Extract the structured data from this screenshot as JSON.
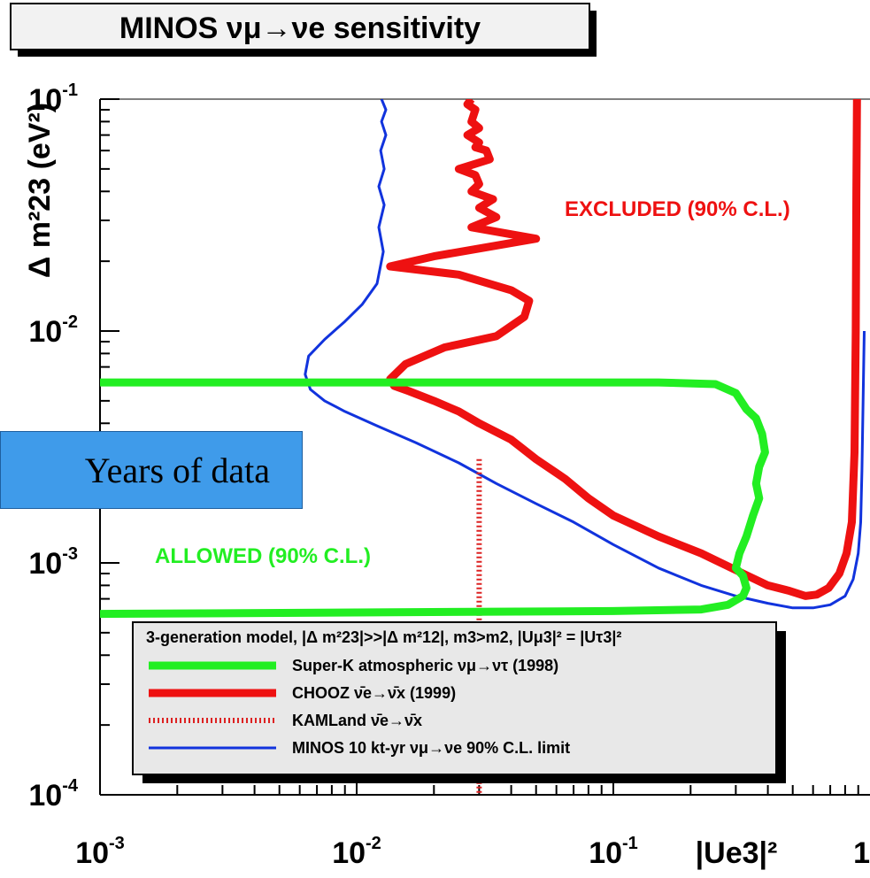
{
  "chart_data": {
    "type": "line",
    "title": "MINOS νμ→νe sensitivity",
    "xlabel": "|Ue3|²",
    "ylabel": "Δ m²23 (eV²)",
    "x_scale": "log",
    "y_scale": "log",
    "xlim": [
      0.001,
      1
    ],
    "ylim": [
      0.0001,
      0.1
    ],
    "x_ticks": [
      {
        "value": 0.001,
        "base": "10",
        "exp": "-3"
      },
      {
        "value": 0.01,
        "base": "10",
        "exp": "-2"
      },
      {
        "value": 0.1,
        "base": "10",
        "exp": "-1"
      },
      {
        "value": 1,
        "base": "1",
        "exp": ""
      }
    ],
    "y_ticks": [
      {
        "value": 0.1,
        "base": "10",
        "exp": "-1"
      },
      {
        "value": 0.01,
        "base": "10",
        "exp": "-2"
      },
      {
        "value": 0.001,
        "base": "10",
        "exp": "-3"
      },
      {
        "value": 0.0001,
        "base": "10",
        "exp": "-4"
      }
    ],
    "series": [
      {
        "name": "Super-K atmospheric νμ→ντ (1998)",
        "color": "#22ee22",
        "style": "solid-thick",
        "points": [
          [
            0.0005,
            0.006
          ],
          [
            0.03,
            0.006
          ],
          [
            0.15,
            0.006
          ],
          [
            0.25,
            0.0059
          ],
          [
            0.3,
            0.0054
          ],
          [
            0.33,
            0.0046
          ],
          [
            0.36,
            0.0042
          ],
          [
            0.38,
            0.0036
          ],
          [
            0.39,
            0.003
          ],
          [
            0.37,
            0.0026
          ],
          [
            0.36,
            0.0022
          ],
          [
            0.37,
            0.0019
          ],
          [
            0.35,
            0.0016
          ],
          [
            0.33,
            0.0013
          ],
          [
            0.31,
            0.0011
          ],
          [
            0.3,
            0.00095
          ],
          [
            0.32,
            0.00088
          ],
          [
            0.33,
            0.00078
          ],
          [
            0.32,
            0.00072
          ],
          [
            0.28,
            0.00066
          ],
          [
            0.22,
            0.00063
          ],
          [
            0.1,
            0.00062
          ],
          [
            0.0005,
            0.0006
          ]
        ]
      },
      {
        "name": "CHOOZ ν̄e→ν̄x (1999)",
        "color": "#ee1111",
        "style": "solid-thick",
        "points": [
          [
            0.028,
            0.1
          ],
          [
            0.027,
            0.095
          ],
          [
            0.029,
            0.09
          ],
          [
            0.028,
            0.08
          ],
          [
            0.03,
            0.075
          ],
          [
            0.027,
            0.07
          ],
          [
            0.03,
            0.065
          ],
          [
            0.029,
            0.062
          ],
          [
            0.032,
            0.06
          ],
          [
            0.033,
            0.055
          ],
          [
            0.025,
            0.05
          ],
          [
            0.029,
            0.047
          ],
          [
            0.03,
            0.043
          ],
          [
            0.028,
            0.04
          ],
          [
            0.034,
            0.037
          ],
          [
            0.03,
            0.034
          ],
          [
            0.035,
            0.031
          ],
          [
            0.028,
            0.028
          ],
          [
            0.05,
            0.025
          ],
          [
            0.02,
            0.021
          ],
          [
            0.0135,
            0.019
          ],
          [
            0.025,
            0.0175
          ],
          [
            0.04,
            0.015
          ],
          [
            0.047,
            0.0135
          ],
          [
            0.045,
            0.0115
          ],
          [
            0.035,
            0.0095
          ],
          [
            0.022,
            0.0085
          ],
          [
            0.0155,
            0.0072
          ],
          [
            0.0135,
            0.0062
          ],
          [
            0.014,
            0.0058
          ],
          [
            0.016,
            0.0055
          ],
          [
            0.02,
            0.005
          ],
          [
            0.025,
            0.0045
          ],
          [
            0.03,
            0.004
          ],
          [
            0.04,
            0.0034
          ],
          [
            0.05,
            0.0028
          ],
          [
            0.065,
            0.0023
          ],
          [
            0.08,
            0.0019
          ],
          [
            0.1,
            0.0016
          ],
          [
            0.15,
            0.0013
          ],
          [
            0.22,
            0.0011
          ],
          [
            0.32,
            0.0009
          ],
          [
            0.4,
            0.0008
          ],
          [
            0.48,
            0.00076
          ],
          [
            0.56,
            0.00072
          ],
          [
            0.62,
            0.00073
          ],
          [
            0.69,
            0.00078
          ],
          [
            0.76,
            0.0009
          ],
          [
            0.81,
            0.0011
          ],
          [
            0.85,
            0.0015
          ],
          [
            0.87,
            0.003
          ],
          [
            0.88,
            0.01
          ],
          [
            0.885,
            0.04
          ],
          [
            0.89,
            0.1
          ]
        ]
      },
      {
        "name": "KAMLand ν̄e→ν̄x",
        "color": "#dd2222",
        "style": "dotted",
        "points": [
          [
            0.03,
            0.0028
          ],
          [
            0.03,
            0.0001
          ]
        ]
      },
      {
        "name": "MINOS 10 kt-yr νμ→νe 90% C.L. limit",
        "color": "#1133dd",
        "style": "solid-thin",
        "points": [
          [
            0.0125,
            0.1
          ],
          [
            0.013,
            0.09
          ],
          [
            0.0125,
            0.08
          ],
          [
            0.013,
            0.07
          ],
          [
            0.0124,
            0.06
          ],
          [
            0.0128,
            0.05
          ],
          [
            0.0122,
            0.042
          ],
          [
            0.0128,
            0.035
          ],
          [
            0.0122,
            0.028
          ],
          [
            0.0127,
            0.022
          ],
          [
            0.012,
            0.016
          ],
          [
            0.0105,
            0.013
          ],
          [
            0.009,
            0.011
          ],
          [
            0.0075,
            0.0092
          ],
          [
            0.0065,
            0.0078
          ],
          [
            0.0063,
            0.0065
          ],
          [
            0.0066,
            0.0056
          ],
          [
            0.0075,
            0.005
          ],
          [
            0.009,
            0.0045
          ],
          [
            0.012,
            0.0039
          ],
          [
            0.017,
            0.0033
          ],
          [
            0.025,
            0.0027
          ],
          [
            0.035,
            0.0022
          ],
          [
            0.05,
            0.0018
          ],
          [
            0.07,
            0.0015
          ],
          [
            0.1,
            0.0012
          ],
          [
            0.15,
            0.00095
          ],
          [
            0.22,
            0.0008
          ],
          [
            0.3,
            0.00072
          ],
          [
            0.4,
            0.00067
          ],
          [
            0.5,
            0.00064
          ],
          [
            0.6,
            0.00064
          ],
          [
            0.7,
            0.00066
          ],
          [
            0.8,
            0.00072
          ],
          [
            0.86,
            0.00085
          ],
          [
            0.9,
            0.0011
          ],
          [
            0.92,
            0.0015
          ],
          [
            0.93,
            0.0025
          ],
          [
            0.94,
            0.005
          ],
          [
            0.95,
            0.01
          ]
        ]
      }
    ],
    "annotations": [
      {
        "text": "EXCLUDED (90% C.L.)",
        "color": "#ee1111"
      },
      {
        "text": "ALLOWED (90% C.L.)",
        "color": "#22ee22"
      }
    ],
    "legend": {
      "header": "3-generation model, |Δ m²23|>>|Δ m²12|, m3>m2, |Uμ3|² = |Uτ3|²",
      "placement": "bottom-center",
      "entries": [
        {
          "label": "Super-K atmospheric νμ→ντ (1998)",
          "color": "#22ee22",
          "style": "solid-thick"
        },
        {
          "label": "CHOOZ ν̄e→ν̄x (1999)",
          "color": "#ee1111",
          "style": "solid-thick"
        },
        {
          "label": "KAMLand ν̄e→ν̄x",
          "color": "#dd2222",
          "style": "dotted"
        },
        {
          "label": "MINOS 10 kt-yr νμ→νe 90% C.L. limit",
          "color": "#1133dd",
          "style": "solid-thin"
        }
      ]
    }
  },
  "overlay": {
    "note": "Years of data"
  }
}
